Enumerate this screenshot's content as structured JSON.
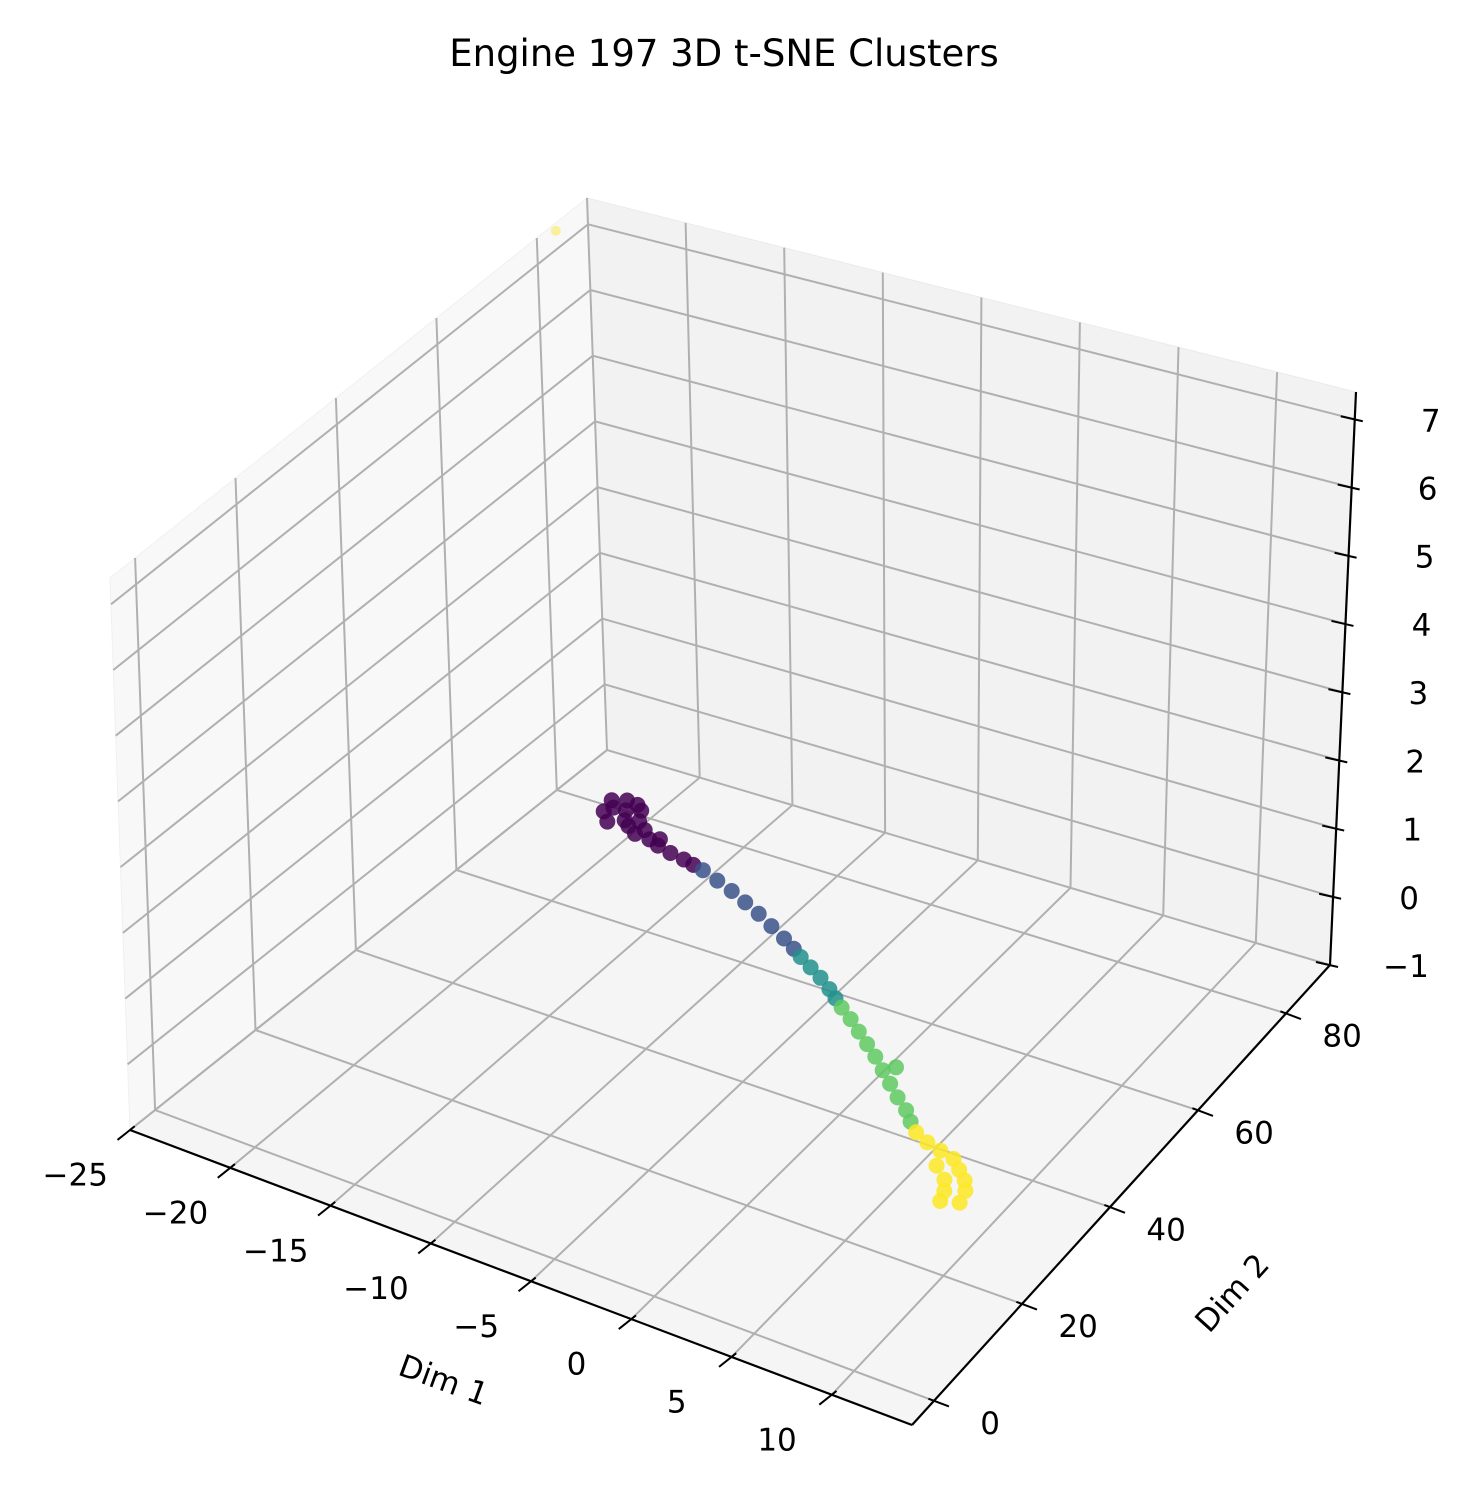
{
  "chart_data": {
    "type": "scatter",
    "title": "Engine 197 3D t-SNE Clusters",
    "xlabel": "Dim 1",
    "ylabel": "Dim 2",
    "zlabel": "",
    "xlim": [
      -25,
      14
    ],
    "ylim": [
      -5,
      90
    ],
    "zlim": [
      -1,
      7.4
    ],
    "xticks": [
      -25,
      -20,
      -15,
      -10,
      -5,
      0,
      5,
      10
    ],
    "yticks": [
      0,
      20,
      40,
      60,
      80
    ],
    "zticks": [
      -1,
      0,
      1,
      2,
      3,
      4,
      5,
      6,
      7
    ],
    "xtick_labels": [
      "−25",
      "−20",
      "−15",
      "−10",
      "−5",
      "0",
      "5",
      "10"
    ],
    "ytick_labels": [
      "0",
      "20",
      "40",
      "60",
      "80"
    ],
    "ztick_labels": [
      "−1",
      "0",
      "1",
      "2",
      "3",
      "4",
      "5",
      "6",
      "7"
    ],
    "grid": true,
    "colormap": "viridis",
    "cluster_colors": [
      "#440154",
      "#3b528b",
      "#21918c",
      "#5ec962",
      "#fde725"
    ],
    "series": [
      {
        "cluster": 0,
        "color": "#440154",
        "points": [
          [
            -18.2,
            66.0,
            0.2
          ],
          [
            -18.6,
            67.2,
            0.2
          ],
          [
            -18.0,
            68.0,
            0.2
          ],
          [
            -17.4,
            67.8,
            0.2
          ],
          [
            -17.0,
            67.0,
            0.2
          ],
          [
            -17.6,
            66.2,
            0.2
          ],
          [
            -18.4,
            64.8,
            0.2
          ],
          [
            -17.2,
            64.4,
            0.2
          ],
          [
            -16.6,
            65.0,
            0.2
          ],
          [
            -16.8,
            63.6,
            0.2
          ],
          [
            -17.8,
            63.2,
            0.2
          ],
          [
            -16.2,
            62.6,
            0.2
          ],
          [
            -15.4,
            62.4,
            0.2
          ],
          [
            -14.8,
            61.8,
            0.2
          ],
          [
            -14.0,
            61.2,
            0.2
          ],
          [
            -13.2,
            60.8,
            0.2
          ],
          [
            -12.6,
            60.4,
            0.2
          ],
          [
            -16.0,
            63.8,
            0.2
          ],
          [
            -15.0,
            63.0,
            0.2
          ]
        ]
      },
      {
        "cluster": 1,
        "color": "#3b528b",
        "points": [
          [
            -12.0,
            60.0,
            0.2
          ],
          [
            -11.0,
            59.0,
            0.2
          ],
          [
            -10.0,
            58.0,
            0.2
          ],
          [
            -9.0,
            56.8,
            0.2
          ],
          [
            -8.0,
            55.6,
            0.2
          ],
          [
            -7.0,
            54.2,
            0.2
          ],
          [
            -6.0,
            52.8,
            0.2
          ],
          [
            -5.2,
            51.6,
            0.2
          ]
        ]
      },
      {
        "cluster": 2,
        "color": "#21918c",
        "points": [
          [
            -4.6,
            50.6,
            0.2
          ],
          [
            -3.8,
            49.4,
            0.2
          ],
          [
            -3.0,
            48.2,
            0.2
          ],
          [
            -2.2,
            46.8,
            0.2
          ],
          [
            -1.6,
            45.6,
            0.2
          ]
        ]
      },
      {
        "cluster": 3,
        "color": "#5ec962",
        "points": [
          [
            -1.0,
            44.4,
            0.2
          ],
          [
            -0.2,
            43.0,
            0.2
          ],
          [
            0.6,
            41.4,
            0.2
          ],
          [
            1.4,
            39.8,
            0.2
          ],
          [
            2.2,
            38.2,
            0.2
          ],
          [
            3.0,
            36.4,
            0.2
          ],
          [
            3.8,
            34.6,
            0.2
          ],
          [
            4.6,
            32.8,
            0.2
          ],
          [
            5.4,
            31.2,
            0.2
          ],
          [
            6.0,
            29.6,
            0.2
          ],
          [
            3.4,
            37.6,
            0.2
          ]
        ]
      },
      {
        "cluster": 4,
        "color": "#fde725",
        "points": [
          [
            6.6,
            28.2,
            0.2
          ],
          [
            7.4,
            27.2,
            0.2
          ],
          [
            8.2,
            26.6,
            0.2
          ],
          [
            9.0,
            26.0,
            0.2
          ],
          [
            9.6,
            24.6,
            0.2
          ],
          [
            8.6,
            24.0,
            0.2
          ],
          [
            10.2,
            23.2,
            0.2
          ],
          [
            9.4,
            22.2,
            0.2
          ],
          [
            10.6,
            21.6,
            0.2
          ],
          [
            9.8,
            20.4,
            0.2
          ],
          [
            10.8,
            19.4,
            0.2
          ],
          [
            10.0,
            18.6,
            0.2
          ],
          [
            -25.6,
            86.0,
            7.1
          ]
        ]
      }
    ]
  }
}
